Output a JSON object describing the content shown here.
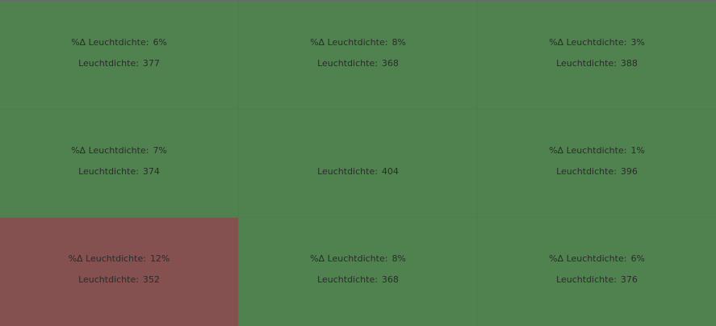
{
  "tiles": [
    {
      "delta_label": "%Δ Leuchtdichte:",
      "delta": "6%",
      "value_label": "Leuchtdichte:",
      "value": "377",
      "color": "#508250"
    },
    {
      "delta_label": "%Δ Leuchtdichte:",
      "delta": "8%",
      "value_label": "Leuchtdichte:",
      "value": "368",
      "color": "#508250"
    },
    {
      "delta_label": "%Δ Leuchtdichte:",
      "delta": "3%",
      "value_label": "Leuchtdichte:",
      "value": "388",
      "color": "#508250"
    },
    {
      "delta_label": "%Δ Leuchtdichte:",
      "delta": "7%",
      "value_label": "Leuchtdichte:",
      "value": "374",
      "color": "#508250"
    },
    {
      "value_label": "Leuchtdichte:",
      "value": "404",
      "color": "#508250"
    },
    {
      "delta_label": "%Δ Leuchtdichte:",
      "delta": "1%",
      "value_label": "Leuchtdichte:",
      "value": "396",
      "color": "#508250"
    },
    {
      "delta_label": "%Δ Leuchtdichte:",
      "delta": "12%",
      "value_label": "Leuchtdichte:",
      "value": "352",
      "color": "#845050"
    },
    {
      "delta_label": "%Δ Leuchtdichte:",
      "delta": "8%",
      "value_label": "Leuchtdichte:",
      "value": "368",
      "color": "#508250"
    },
    {
      "delta_label": "%Δ Leuchtdichte:",
      "delta": "6%",
      "value_label": "Leuchtdichte:",
      "value": "376",
      "color": "#508250"
    }
  ]
}
